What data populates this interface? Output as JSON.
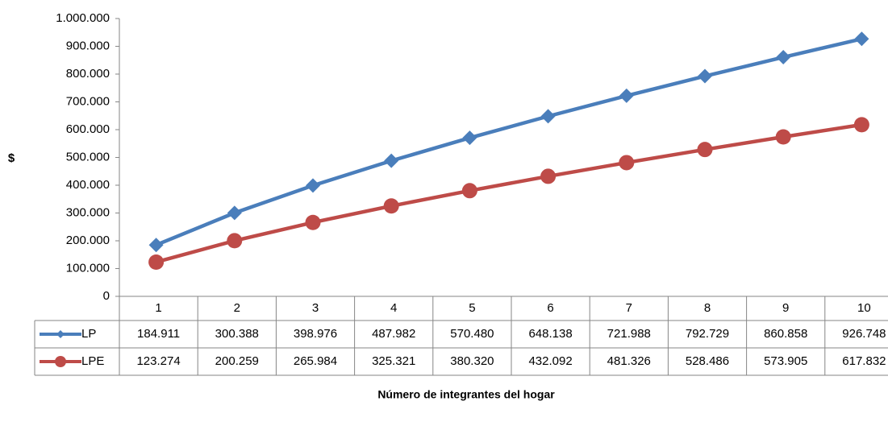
{
  "chart_data": {
    "type": "line",
    "y_label": "$",
    "x_label": "Número de integrantes del hogar",
    "categories": [
      "1",
      "2",
      "3",
      "4",
      "5",
      "6",
      "7",
      "8",
      "9",
      "10"
    ],
    "series": [
      {
        "name": "LP",
        "color": "#4a7ebb",
        "marker": "diamond",
        "values": [
          184911,
          300388,
          398976,
          487982,
          570480,
          648138,
          721988,
          792729,
          860858,
          926748
        ],
        "value_labels": [
          "184.911",
          "300.388",
          "398.976",
          "487.982",
          "570.480",
          "648.138",
          "721.988",
          "792.729",
          "860.858",
          "926.748"
        ]
      },
      {
        "name": "LPE",
        "color": "#be4b48",
        "marker": "circle",
        "values": [
          123274,
          200259,
          265984,
          325321,
          380320,
          432092,
          481326,
          528486,
          573905,
          617832
        ],
        "value_labels": [
          "123.274",
          "200.259",
          "265.984",
          "325.321",
          "380.320",
          "432.092",
          "481.326",
          "528.486",
          "573.905",
          "617.832"
        ]
      }
    ],
    "ylim": [
      0,
      1000000
    ],
    "yticks": [
      0,
      {
        "value": 100000,
        "label": "100.000"
      },
      {
        "value": 200000,
        "label": "200.000"
      },
      {
        "value": 300000,
        "label": "300.000"
      },
      {
        "value": 400000,
        "label": "400.000"
      },
      {
        "value": 500000,
        "label": "500.000"
      },
      {
        "value": 600000,
        "label": "600.000"
      },
      {
        "value": 700000,
        "label": "700.000"
      },
      {
        "value": 800000,
        "label": "800.000"
      },
      {
        "value": 900000,
        "label": "900.000"
      },
      {
        "value": 1000000,
        "label": "1.000.000"
      }
    ]
  }
}
